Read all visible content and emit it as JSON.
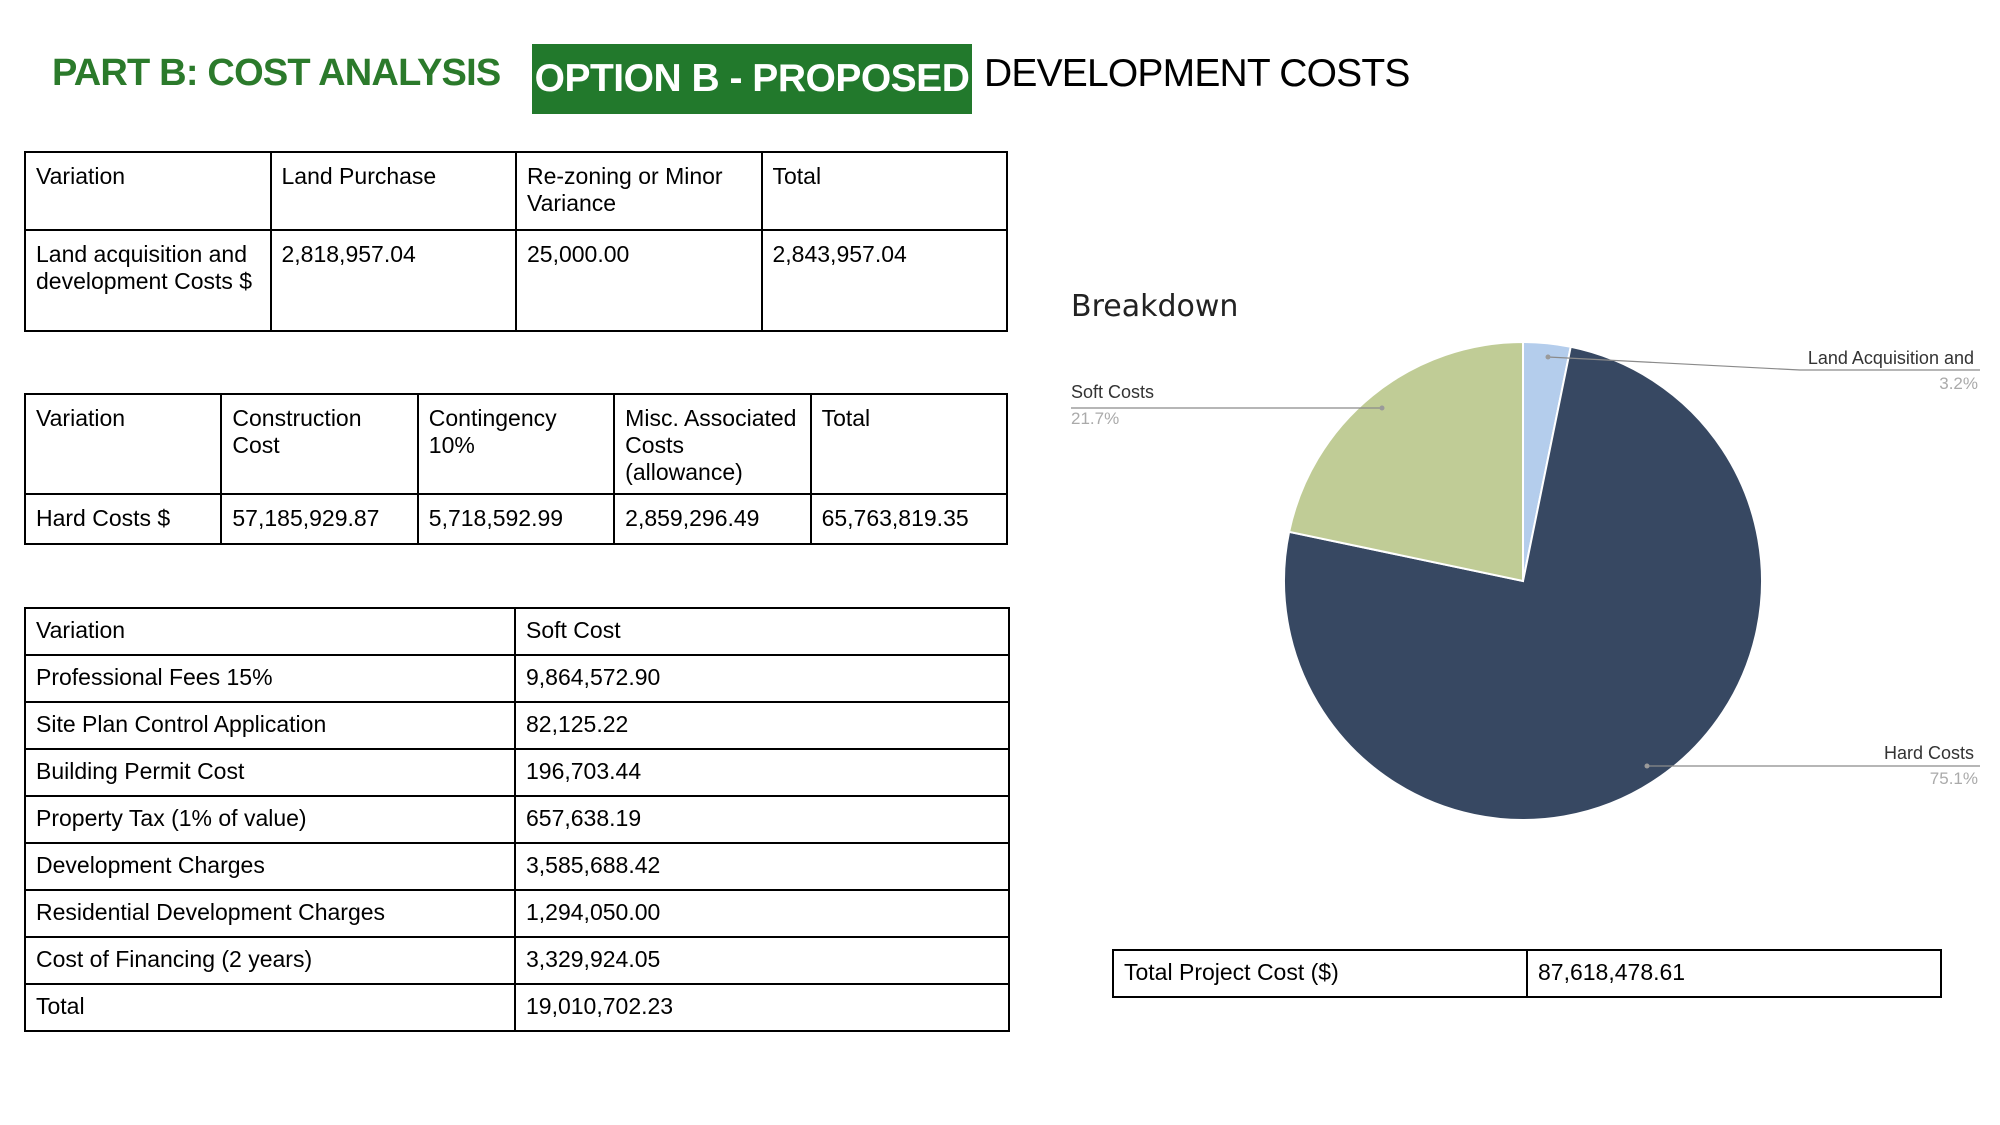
{
  "header": {
    "part_title": "PART B: COST ANALYSIS",
    "option_badge": "OPTION B - PROPOSED",
    "subtitle": "DEVELOPMENT COSTS"
  },
  "land_table": {
    "headers": [
      "Variation",
      "Land Purchase",
      "Re-zoning or Minor Variance",
      "Total"
    ],
    "row": [
      "Land acquisition and development Costs $",
      "2,818,957.04",
      "25,000.00",
      "2,843,957.04"
    ]
  },
  "hard_table": {
    "headers": [
      "Variation",
      "Construction Cost",
      "Contingency 10%",
      "Misc. Associated Costs (allowance)",
      "Total"
    ],
    "row": [
      "Hard Costs $",
      "57,185,929.87",
      "5,718,592.99",
      "2,859,296.49",
      "65,763,819.35"
    ]
  },
  "soft_table": {
    "headers": [
      "Variation",
      "Soft Cost"
    ],
    "rows": [
      [
        "Professional Fees 15%",
        "9,864,572.90"
      ],
      [
        "Site Plan Control Application",
        "82,125.22"
      ],
      [
        "Building Permit Cost",
        "196,703.44"
      ],
      [
        "Property Tax (1% of value)",
        "657,638.19"
      ],
      [
        "Development Charges",
        "3,585,688.42"
      ],
      [
        "Residential Development Charges",
        "1,294,050.00"
      ],
      [
        "Cost of Financing (2 years)",
        "3,329,924.05"
      ],
      [
        "Total",
        "19,010,702.23"
      ]
    ]
  },
  "total_table": {
    "label": "Total Project Cost ($)",
    "value": "87,618,478.61"
  },
  "chart_data": {
    "type": "pie",
    "title": "Breakdown",
    "slices": [
      {
        "label": "Land Acquisition and",
        "value": 3.2,
        "pct_label": "3.2%",
        "color": "#b4cdec"
      },
      {
        "label": "Hard Costs",
        "value": 75.1,
        "pct_label": "75.1%",
        "color": "#374862"
      },
      {
        "label": "Soft Costs",
        "value": 21.7,
        "pct_label": "21.7%",
        "color": "#c0cc96"
      }
    ],
    "legend": "callout-labels"
  }
}
